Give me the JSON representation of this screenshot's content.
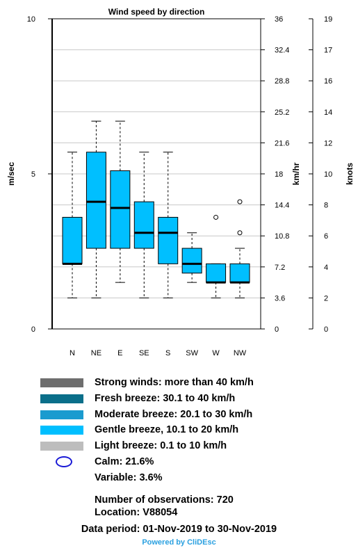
{
  "chart_data": {
    "type": "box",
    "title": "Wind speed by direction",
    "ylabel_left": "m/sec",
    "ylabel_mid": "km/hr",
    "ylabel_right": "knots",
    "categories": [
      "N",
      "NE",
      "E",
      "SE",
      "S",
      "SW",
      "W",
      "NW"
    ],
    "ylim": [
      0,
      10
    ],
    "left_ticks": [
      "0",
      "5",
      "10"
    ],
    "mid_ticks": [
      "0",
      "3.6",
      "7.2",
      "10.8",
      "14.4",
      "18",
      "21.6",
      "25.2",
      "28.8",
      "32.4",
      "36"
    ],
    "right_ticks": [
      "0",
      "2",
      "4",
      "6",
      "8",
      "10",
      "12",
      "14",
      "16",
      "17",
      "19"
    ],
    "box_color": "#00bfff",
    "boxes": [
      {
        "category": "N",
        "whisker_low": 1.0,
        "q1": 2.1,
        "median": 2.1,
        "q3": 3.6,
        "whisker_high": 5.7,
        "outliers": []
      },
      {
        "category": "NE",
        "whisker_low": 1.0,
        "q1": 2.6,
        "median": 4.1,
        "q3": 5.7,
        "whisker_high": 6.7,
        "outliers": []
      },
      {
        "category": "E",
        "whisker_low": 1.5,
        "q1": 2.6,
        "median": 3.9,
        "q3": 5.1,
        "whisker_high": 6.7,
        "outliers": []
      },
      {
        "category": "SE",
        "whisker_low": 1.0,
        "q1": 2.6,
        "median": 3.1,
        "q3": 4.1,
        "whisker_high": 5.7,
        "outliers": []
      },
      {
        "category": "S",
        "whisker_low": 1.0,
        "q1": 2.1,
        "median": 3.1,
        "q3": 3.6,
        "whisker_high": 5.7,
        "outliers": []
      },
      {
        "category": "SW",
        "whisker_low": 1.5,
        "q1": 1.8,
        "median": 2.1,
        "q3": 2.6,
        "whisker_high": 3.1,
        "outliers": []
      },
      {
        "category": "W",
        "whisker_low": 1.0,
        "q1": 1.5,
        "median": 1.5,
        "q3": 2.1,
        "whisker_high": 2.1,
        "outliers": [
          3.6
        ]
      },
      {
        "category": "NW",
        "whisker_low": 1.0,
        "q1": 1.5,
        "median": 1.5,
        "q3": 2.1,
        "whisker_high": 2.6,
        "outliers": [
          3.1,
          4.1
        ]
      }
    ]
  },
  "legend": [
    {
      "label": "Strong winds: more than 40 km/h",
      "color": "#6e6e6e"
    },
    {
      "label": "Fresh breeze: 30.1 to 40 km/h",
      "color": "#0b6f8a"
    },
    {
      "label": "Moderate breeze: 20.1 to 30 km/h",
      "color": "#1a9bcf"
    },
    {
      "label": "Gentle breeze, 10.1 to 20 km/h",
      "color": "#00bfff"
    },
    {
      "label": "Light breeze: 0.1 to 10 km/h",
      "color": "#bdbdbd"
    }
  ],
  "calm": "Calm: 21.6%",
  "calm_icon": "circle-icon",
  "calm_color": "#1a1ad6",
  "variable": "Variable: 3.6%",
  "observations": "Number of observations:  720",
  "location": "Location:  V88054",
  "period": "Data period: 01-Nov-2019 to 30-Nov-2019",
  "powered_by": "Powered by CliDEsc",
  "powered_color": "#2aa0e0"
}
